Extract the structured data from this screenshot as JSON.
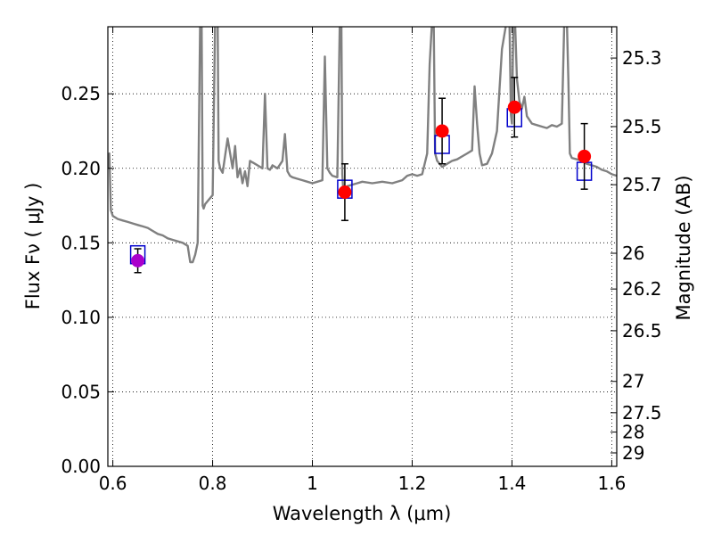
{
  "chart_data": {
    "type": "line",
    "xlabel": "Wavelength  λ (μm)",
    "ylabel": "Flux  Fν  ( μJy )",
    "ylabel_right": "Magnitude (AB)",
    "xlim": [
      0.59,
      1.61
    ],
    "ylim": [
      0.0,
      0.295
    ],
    "x_ticks": [
      0.6,
      0.8,
      1.0,
      1.2,
      1.4,
      1.6
    ],
    "x_tick_labels": [
      "0.6",
      "0.8",
      "1",
      "1.2",
      "1.4",
      "1.6"
    ],
    "y_ticks": [
      0.0,
      0.05,
      0.1,
      0.15,
      0.2,
      0.25
    ],
    "y_tick_labels": [
      "0.00",
      "0.05",
      "0.10",
      "0.15",
      "0.20",
      "0.25"
    ],
    "right_ticks": [
      {
        "label": "25.3",
        "flux": 0.274
      },
      {
        "label": "25.5",
        "flux": 0.228
      },
      {
        "label": "25.7",
        "flux": 0.189
      },
      {
        "label": "26",
        "flux": 0.143
      },
      {
        "label": "26.2",
        "flux": 0.119
      },
      {
        "label": "26.5",
        "flux": 0.091
      },
      {
        "label": "27",
        "flux": 0.057
      },
      {
        "label": "27.5",
        "flux": 0.036
      },
      {
        "label": "28",
        "flux": 0.023
      },
      {
        "label": "29",
        "flux": 0.009
      }
    ],
    "grid": true,
    "series": [
      {
        "kind": "model-spectrum",
        "color": "#808080",
        "x": [
          0.59,
          0.593,
          0.596,
          0.6,
          0.61,
          0.62,
          0.63,
          0.64,
          0.65,
          0.66,
          0.67,
          0.68,
          0.69,
          0.7,
          0.71,
          0.72,
          0.73,
          0.74,
          0.75,
          0.755,
          0.76,
          0.765,
          0.77,
          0.775,
          0.778,
          0.78,
          0.782,
          0.785,
          0.79,
          0.8,
          0.805,
          0.808,
          0.81,
          0.812,
          0.815,
          0.82,
          0.83,
          0.84,
          0.845,
          0.85,
          0.855,
          0.86,
          0.865,
          0.87,
          0.875,
          0.88,
          0.885,
          0.89,
          0.9,
          0.905,
          0.91,
          0.915,
          0.92,
          0.93,
          0.94,
          0.945,
          0.95,
          0.955,
          0.96,
          0.97,
          0.98,
          0.99,
          1.0,
          1.01,
          1.02,
          1.025,
          1.03,
          1.035,
          1.04,
          1.05,
          1.055,
          1.058,
          1.06,
          1.062,
          1.065,
          1.07,
          1.08,
          1.09,
          1.1,
          1.12,
          1.14,
          1.16,
          1.18,
          1.19,
          1.2,
          1.21,
          1.22,
          1.23,
          1.235,
          1.24,
          1.243,
          1.246,
          1.25,
          1.26,
          1.27,
          1.28,
          1.29,
          1.3,
          1.31,
          1.32,
          1.325,
          1.33,
          1.335,
          1.34,
          1.35,
          1.36,
          1.37,
          1.38,
          1.39,
          1.395,
          1.398,
          1.4,
          1.403,
          1.406,
          1.41,
          1.415,
          1.42,
          1.425,
          1.43,
          1.44,
          1.45,
          1.46,
          1.47,
          1.48,
          1.49,
          1.5,
          1.505,
          1.51,
          1.513,
          1.516,
          1.52,
          1.53,
          1.54,
          1.55,
          1.56,
          1.57,
          1.58,
          1.59,
          1.6,
          1.61
        ],
        "y": [
          0.2,
          0.21,
          0.172,
          0.168,
          0.166,
          0.165,
          0.164,
          0.163,
          0.162,
          0.161,
          0.16,
          0.158,
          0.156,
          0.155,
          0.153,
          0.152,
          0.151,
          0.15,
          0.148,
          0.137,
          0.137,
          0.142,
          0.15,
          0.3,
          0.3,
          0.175,
          0.173,
          0.176,
          0.178,
          0.182,
          0.3,
          0.3,
          0.3,
          0.205,
          0.2,
          0.197,
          0.22,
          0.2,
          0.215,
          0.194,
          0.2,
          0.19,
          0.198,
          0.188,
          0.205,
          0.204,
          0.203,
          0.202,
          0.2,
          0.25,
          0.2,
          0.199,
          0.202,
          0.2,
          0.205,
          0.223,
          0.198,
          0.195,
          0.194,
          0.193,
          0.192,
          0.191,
          0.19,
          0.191,
          0.192,
          0.275,
          0.2,
          0.197,
          0.195,
          0.194,
          0.3,
          0.3,
          0.196,
          0.185,
          0.186,
          0.188,
          0.189,
          0.19,
          0.191,
          0.19,
          0.191,
          0.19,
          0.192,
          0.195,
          0.196,
          0.195,
          0.196,
          0.21,
          0.27,
          0.3,
          0.3,
          0.21,
          0.205,
          0.201,
          0.203,
          0.205,
          0.206,
          0.208,
          0.21,
          0.212,
          0.255,
          0.23,
          0.21,
          0.202,
          0.203,
          0.21,
          0.225,
          0.28,
          0.3,
          0.3,
          0.236,
          0.23,
          0.3,
          0.3,
          0.26,
          0.245,
          0.24,
          0.248,
          0.235,
          0.23,
          0.229,
          0.228,
          0.227,
          0.229,
          0.228,
          0.23,
          0.3,
          0.3,
          0.26,
          0.21,
          0.207,
          0.206,
          0.205,
          0.203,
          0.202,
          0.201,
          0.199,
          0.198,
          0.196,
          0.195
        ]
      },
      {
        "kind": "model-photometry",
        "marker": "open-square",
        "color": "#0000cc",
        "x": [
          0.65,
          1.065,
          1.26,
          1.405,
          1.545
        ],
        "y": [
          0.142,
          0.186,
          0.216,
          0.234,
          0.198
        ]
      },
      {
        "kind": "observed-photometry",
        "marker": "filled-circle",
        "x": [
          0.65,
          1.065,
          1.26,
          1.405,
          1.545
        ],
        "y": [
          0.138,
          0.184,
          0.225,
          0.241,
          0.208
        ],
        "err": [
          0.008,
          0.019,
          0.022,
          0.02,
          0.022
        ],
        "colors": [
          "#aa00cc",
          "#ff0000",
          "#ff0000",
          "#ff0000",
          "#ff0000"
        ]
      }
    ]
  }
}
